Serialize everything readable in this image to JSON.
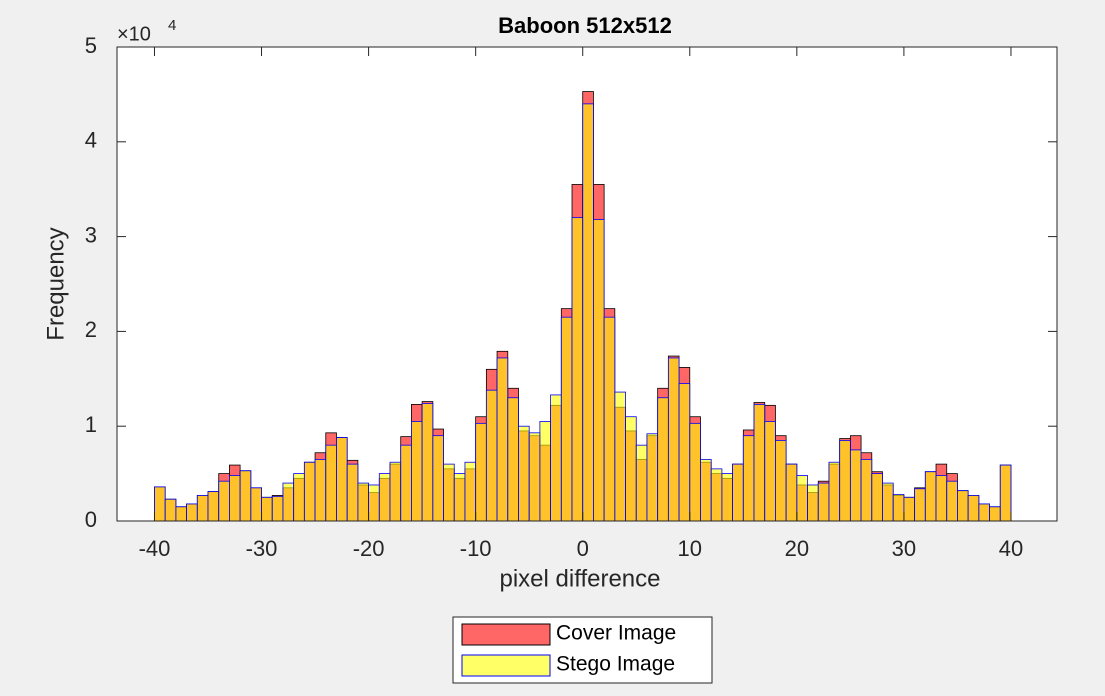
{
  "chart_data": {
    "type": "histogram",
    "title": "Baboon 512x512",
    "xlabel": "pixel difference",
    "ylabel": "Frequency",
    "exponent_base": "×10",
    "exponent": "4",
    "bins": [
      -40,
      -39,
      -38,
      -37,
      -36,
      -35,
      -34,
      -33,
      -32,
      -31,
      -30,
      -29,
      -28,
      -27,
      -26,
      -25,
      -24,
      -23,
      -22,
      -21,
      -20,
      -19,
      -18,
      -17,
      -16,
      -15,
      -14,
      -13,
      -12,
      -11,
      -10,
      -9,
      -8,
      -7,
      -6,
      -5,
      -4,
      -3,
      -2,
      -1,
      0,
      1,
      2,
      3,
      4,
      5,
      6,
      7,
      8,
      9,
      10,
      11,
      12,
      13,
      14,
      15,
      16,
      17,
      18,
      19,
      20,
      21,
      22,
      23,
      24,
      25,
      26,
      27,
      28,
      29,
      30,
      31,
      32,
      33,
      34,
      35,
      36,
      37,
      38,
      39,
      40
    ],
    "series": [
      {
        "name": "Cover Image",
        "color": "#ff0000",
        "edge_color": "#000000",
        "opacity": 0.6,
        "values": [
          0.36,
          0.23,
          0.15,
          0.18,
          0.27,
          0.31,
          0.5,
          0.59,
          0.53,
          0.35,
          0.25,
          0.27,
          0.35,
          0.45,
          0.62,
          0.72,
          0.93,
          0.88,
          0.64,
          0.38,
          0.3,
          0.45,
          0.6,
          0.89,
          1.23,
          1.26,
          0.97,
          0.55,
          0.45,
          0.55,
          1.1,
          1.6,
          1.79,
          1.4,
          0.95,
          0.9,
          0.8,
          1.22,
          2.24,
          3.55,
          4.53,
          3.55,
          2.24,
          1.2,
          0.95,
          0.65,
          0.9,
          1.4,
          1.74,
          1.62,
          1.1,
          0.62,
          0.5,
          0.45,
          0.6,
          0.96,
          1.25,
          1.22,
          0.9,
          0.6,
          0.38,
          0.3,
          0.42,
          0.6,
          0.87,
          0.9,
          0.72,
          0.52,
          0.38,
          0.27,
          0.25,
          0.35,
          0.52,
          0.6,
          0.5,
          0.32,
          0.27,
          0.18,
          0.15,
          0.59
        ]
      },
      {
        "name": "Stego Image",
        "color": "#ffff00",
        "edge_color": "#0000ff",
        "opacity": 0.6,
        "values": [
          0.36,
          0.23,
          0.15,
          0.18,
          0.27,
          0.31,
          0.42,
          0.48,
          0.53,
          0.35,
          0.25,
          0.26,
          0.4,
          0.5,
          0.62,
          0.65,
          0.8,
          0.88,
          0.6,
          0.4,
          0.38,
          0.5,
          0.62,
          0.8,
          1.05,
          1.24,
          0.9,
          0.6,
          0.5,
          0.62,
          1.03,
          1.38,
          1.72,
          1.3,
          1.0,
          0.93,
          1.05,
          1.33,
          2.15,
          3.2,
          4.4,
          3.18,
          2.15,
          1.36,
          1.1,
          0.8,
          0.92,
          1.3,
          1.72,
          1.45,
          1.03,
          0.65,
          0.55,
          0.5,
          0.6,
          0.9,
          1.23,
          1.05,
          0.85,
          0.6,
          0.48,
          0.38,
          0.4,
          0.62,
          0.85,
          0.75,
          0.65,
          0.5,
          0.4,
          0.28,
          0.25,
          0.34,
          0.52,
          0.48,
          0.42,
          0.32,
          0.27,
          0.18,
          0.15,
          0.59
        ]
      }
    ],
    "xlim": [
      -43.5,
      44.3
    ],
    "xticks": [
      -40,
      -30,
      -20,
      -10,
      0,
      10,
      20,
      30,
      40
    ],
    "ylim": [
      0,
      5
    ],
    "yticks": [
      0,
      1,
      2,
      3,
      4,
      5
    ],
    "grid": false,
    "legend": "southoutside"
  }
}
